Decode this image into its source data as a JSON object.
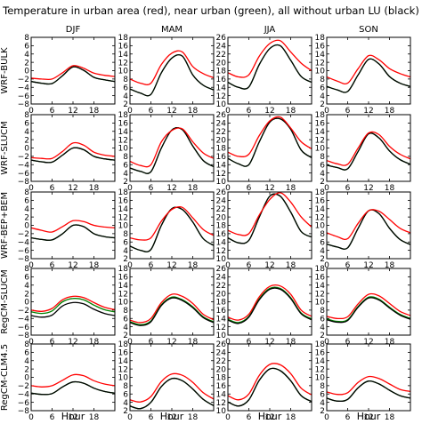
{
  "figure": {
    "title": "Temperature in urban area (red), near urban (green), all without urban LU (black)",
    "column_titles": [
      "DJF",
      "MAM",
      "JJA",
      "SON"
    ],
    "row_labels": [
      "WRF-BULK",
      "WRF-SLUCM",
      "WRF-BEP+BEM",
      "RegCM-SLUCM",
      "RegCM-CLM4.5"
    ],
    "xlabel": "Hour",
    "x_tick_labels": [
      "0",
      "6",
      "12",
      "18"
    ],
    "y_axes": [
      {
        "ticks": [
          "8",
          "6",
          "4",
          "2",
          "0",
          "−2",
          "−4",
          "−6",
          "−8"
        ]
      },
      {
        "ticks": [
          "18",
          "16",
          "14",
          "12",
          "10",
          "8",
          "6",
          "4",
          "2"
        ]
      },
      {
        "ticks": [
          "26",
          "24",
          "22",
          "20",
          "18",
          "16",
          "14",
          "12",
          "10"
        ]
      },
      {
        "ticks": [
          "18",
          "16",
          "14",
          "12",
          "10",
          "8",
          "6",
          "4",
          "2"
        ]
      }
    ],
    "series_colors": {
      "urban": "#ff0000",
      "near_urban": "#008000",
      "no_urban": "#000000"
    }
  },
  "chart_data": {
    "type": "line",
    "x_unit": "Hour",
    "x": [
      0,
      3,
      6,
      9,
      12,
      15,
      18,
      21,
      24
    ],
    "xlim": [
      0,
      24
    ],
    "ylims_by_column": [
      [
        -8,
        8
      ],
      [
        2,
        18
      ],
      [
        10,
        26
      ],
      [
        2,
        18
      ]
    ],
    "series_keys": [
      "urban",
      "near_urban",
      "no_urban"
    ],
    "panels": [
      {
        "row": "WRF-BULK",
        "col": "DJF",
        "series": [
          {
            "key": "urban",
            "values": [
              -1.8,
              -2.0,
              -2.0,
              -0.5,
              1.2,
              0.6,
              -0.6,
              -1.1,
              -1.4
            ]
          },
          {
            "key": "near_urban",
            "values": [
              -2.6,
              -3.0,
              -3.1,
              -1.2,
              0.9,
              0.1,
              -1.6,
              -2.2,
              -2.6
            ]
          },
          {
            "key": "no_urban",
            "values": [
              -2.6,
              -3.0,
              -3.1,
              -1.2,
              0.9,
              0.1,
              -1.6,
              -2.2,
              -2.6
            ]
          }
        ]
      },
      {
        "row": "WRF-BULK",
        "col": "MAM",
        "series": [
          {
            "key": "urban",
            "values": [
              8.0,
              7.0,
              7.0,
              11.5,
              14.2,
              14.5,
              11.0,
              9.3,
              8.3
            ]
          },
          {
            "key": "near_urban",
            "values": [
              5.6,
              4.6,
              4.3,
              9.5,
              13.0,
              13.5,
              9.0,
              6.5,
              5.4
            ]
          },
          {
            "key": "no_urban",
            "values": [
              5.6,
              4.6,
              4.3,
              9.5,
              13.0,
              13.5,
              9.0,
              6.5,
              5.4
            ]
          }
        ]
      },
      {
        "row": "WRF-BULK",
        "col": "JJA",
        "series": [
          {
            "key": "urban",
            "values": [
              17.5,
              16.5,
              17.0,
              21.5,
              24.5,
              25.2,
              22.5,
              19.8,
              18.0
            ]
          },
          {
            "key": "near_urban",
            "values": [
              15.2,
              14.0,
              14.1,
              19.5,
              23.3,
              24.0,
              20.5,
              16.6,
              15.2
            ]
          },
          {
            "key": "no_urban",
            "values": [
              15.2,
              14.0,
              14.1,
              19.5,
              23.3,
              24.0,
              20.5,
              16.6,
              15.2
            ]
          }
        ]
      },
      {
        "row": "WRF-BULK",
        "col": "SON",
        "series": [
          {
            "key": "urban",
            "values": [
              8.5,
              7.5,
              7.0,
              10.5,
              13.6,
              12.6,
              10.5,
              9.3,
              8.5
            ]
          },
          {
            "key": "near_urban",
            "values": [
              6.2,
              5.4,
              5.0,
              9.0,
              12.7,
              11.6,
              8.6,
              7.0,
              6.2
            ]
          },
          {
            "key": "no_urban",
            "values": [
              6.2,
              5.4,
              5.0,
              9.0,
              12.7,
              11.6,
              8.6,
              7.0,
              6.2
            ]
          }
        ]
      },
      {
        "row": "WRF-SLUCM",
        "col": "DJF",
        "series": [
          {
            "key": "urban",
            "values": [
              -2.3,
              -2.5,
              -2.5,
              -0.8,
              1.2,
              0.7,
              -1.0,
              -1.7,
              -2.0
            ]
          },
          {
            "key": "near_urban",
            "values": [
              -2.9,
              -3.3,
              -3.4,
              -1.7,
              0.0,
              -0.4,
              -2.0,
              -2.6,
              -2.9
            ]
          },
          {
            "key": "no_urban",
            "values": [
              -2.9,
              -3.3,
              -3.4,
              -1.7,
              0.0,
              -0.4,
              -2.0,
              -2.6,
              -2.9
            ]
          }
        ]
      },
      {
        "row": "WRF-SLUCM",
        "col": "MAM",
        "series": [
          {
            "key": "urban",
            "values": [
              6.8,
              5.8,
              6.0,
              11.5,
              14.2,
              14.6,
              11.5,
              8.8,
              7.5
            ]
          },
          {
            "key": "near_urban",
            "values": [
              5.2,
              4.4,
              4.3,
              10.0,
              14.3,
              14.4,
              10.5,
              7.0,
              5.5
            ]
          },
          {
            "key": "no_urban",
            "values": [
              5.2,
              4.4,
              4.3,
              10.0,
              14.3,
              14.4,
              10.5,
              7.0,
              5.5
            ]
          }
        ]
      },
      {
        "row": "WRF-SLUCM",
        "col": "JJA",
        "series": [
          {
            "key": "urban",
            "values": [
              17.0,
              16.0,
              16.5,
              21.0,
              24.5,
              25.4,
              22.8,
              19.5,
              17.8
            ]
          },
          {
            "key": "near_urban",
            "values": [
              15.5,
              14.2,
              14.0,
              19.5,
              24.2,
              25.0,
              22.5,
              17.5,
              15.7
            ]
          },
          {
            "key": "no_urban",
            "values": [
              15.5,
              14.2,
              14.0,
              19.5,
              24.2,
              25.0,
              22.5,
              17.5,
              15.7
            ]
          }
        ]
      },
      {
        "row": "WRF-SLUCM",
        "col": "SON",
        "series": [
          {
            "key": "urban",
            "values": [
              7.0,
              6.2,
              6.1,
              10.0,
              13.6,
              13.2,
              10.4,
              8.5,
              7.4
            ]
          },
          {
            "key": "near_urban",
            "values": [
              5.9,
              5.3,
              5.0,
              9.2,
              13.4,
              12.4,
              9.3,
              7.2,
              6.1
            ]
          },
          {
            "key": "no_urban",
            "values": [
              5.9,
              5.3,
              5.0,
              9.2,
              13.4,
              12.4,
              9.3,
              7.2,
              6.1
            ]
          }
        ]
      },
      {
        "row": "WRF-BEP+BEM",
        "col": "DJF",
        "series": [
          {
            "key": "urban",
            "values": [
              -0.6,
              -1.2,
              -1.6,
              -0.3,
              1.1,
              0.9,
              0.0,
              -0.4,
              -0.6
            ]
          },
          {
            "key": "near_urban",
            "values": [
              -3.0,
              -3.4,
              -3.5,
              -2.0,
              0.0,
              -0.3,
              -2.0,
              -2.7,
              -3.0
            ]
          },
          {
            "key": "no_urban",
            "values": [
              -3.0,
              -3.4,
              -3.5,
              -2.0,
              0.0,
              -0.3,
              -2.0,
              -2.7,
              -3.0
            ]
          }
        ]
      },
      {
        "row": "WRF-BEP+BEM",
        "col": "MAM",
        "series": [
          {
            "key": "urban",
            "values": [
              7.0,
              6.5,
              7.0,
              11.0,
              13.8,
              14.3,
              11.8,
              9.0,
              7.6
            ]
          },
          {
            "key": "near_urban",
            "values": [
              5.0,
              4.0,
              4.2,
              10.0,
              14.0,
              13.8,
              10.8,
              6.8,
              5.2
            ]
          },
          {
            "key": "no_urban",
            "values": [
              5.0,
              4.0,
              4.2,
              10.0,
              14.0,
              13.8,
              10.8,
              6.8,
              5.2
            ]
          }
        ]
      },
      {
        "row": "WRF-BEP+BEM",
        "col": "JJA",
        "series": [
          {
            "key": "urban",
            "values": [
              16.8,
              15.8,
              16.0,
              20.5,
              24.2,
              25.8,
              23.6,
              20.0,
              17.6
            ]
          },
          {
            "key": "near_urban",
            "values": [
              15.0,
              13.8,
              14.4,
              20.0,
              25.0,
              25.0,
              21.2,
              16.5,
              15.2
            ]
          },
          {
            "key": "no_urban",
            "values": [
              15.0,
              13.8,
              14.4,
              20.0,
              25.0,
              25.0,
              21.2,
              16.5,
              15.2
            ]
          }
        ]
      },
      {
        "row": "WRF-BEP+BEM",
        "col": "SON",
        "series": [
          {
            "key": "urban",
            "values": [
              8.2,
              7.3,
              6.8,
              10.5,
              13.5,
              13.4,
              11.4,
              9.3,
              8.2
            ]
          },
          {
            "key": "near_urban",
            "values": [
              5.5,
              4.8,
              4.6,
              9.3,
              13.5,
              12.8,
              9.3,
              6.6,
              5.4
            ]
          },
          {
            "key": "no_urban",
            "values": [
              5.5,
              4.8,
              4.6,
              9.3,
              13.5,
              12.8,
              9.3,
              6.6,
              5.4
            ]
          }
        ]
      },
      {
        "row": "RegCM-SLUCM",
        "col": "DJF",
        "series": [
          {
            "key": "urban",
            "values": [
              -2.0,
              -2.3,
              -1.6,
              0.5,
              1.3,
              1.0,
              -0.2,
              -1.3,
              -1.9
            ]
          },
          {
            "key": "near_urban",
            "values": [
              -2.4,
              -2.8,
              -2.2,
              0.0,
              0.8,
              0.5,
              -0.8,
              -1.9,
              -2.4
            ]
          },
          {
            "key": "no_urban",
            "values": [
              -3.3,
              -3.7,
              -3.2,
              -1.0,
              -0.2,
              -0.5,
              -1.8,
              -2.8,
              -3.3
            ]
          }
        ]
      },
      {
        "row": "RegCM-SLUCM",
        "col": "MAM",
        "series": [
          {
            "key": "urban",
            "values": [
              5.6,
              5.0,
              6.0,
              9.8,
              11.8,
              11.3,
              9.6,
              7.0,
              5.7
            ]
          },
          {
            "key": "near_urban",
            "values": [
              5.2,
              4.5,
              5.4,
              9.3,
              11.1,
              10.5,
              8.8,
              6.4,
              5.2
            ]
          },
          {
            "key": "no_urban",
            "values": [
              5.0,
              4.3,
              5.2,
              9.1,
              10.9,
              10.3,
              8.6,
              6.2,
              5.0
            ]
          }
        ]
      },
      {
        "row": "RegCM-SLUCM",
        "col": "JJA",
        "series": [
          {
            "key": "urban",
            "values": [
              14.3,
              13.6,
              15.0,
              19.2,
              21.7,
              21.8,
              19.8,
              16.0,
              14.5
            ]
          },
          {
            "key": "near_urban",
            "values": [
              13.8,
              13.0,
              14.5,
              18.7,
              21.2,
              21.2,
              19.0,
              15.3,
              13.9
            ]
          },
          {
            "key": "no_urban",
            "values": [
              13.6,
              12.8,
              14.3,
              18.5,
              21.0,
              21.0,
              18.8,
              15.1,
              13.7
            ]
          }
        ]
      },
      {
        "row": "RegCM-SLUCM",
        "col": "SON",
        "series": [
          {
            "key": "urban",
            "values": [
              6.5,
              6.0,
              6.4,
              9.5,
              11.8,
              11.4,
              9.6,
              7.7,
              6.7
            ]
          },
          {
            "key": "near_urban",
            "values": [
              5.9,
              5.3,
              5.7,
              8.9,
              11.1,
              10.6,
              8.7,
              7.0,
              6.0
            ]
          },
          {
            "key": "no_urban",
            "values": [
              5.7,
              5.1,
              5.5,
              8.7,
              10.9,
              10.4,
              8.5,
              6.8,
              5.8
            ]
          }
        ]
      },
      {
        "row": "RegCM-CLM4.5",
        "col": "DJF",
        "series": [
          {
            "key": "urban",
            "values": [
              -2.0,
              -2.3,
              -2.0,
              -0.7,
              0.6,
              0.4,
              -0.8,
              -1.6,
              -2.0
            ]
          },
          {
            "key": "near_urban",
            "values": [
              -3.8,
              -4.1,
              -3.9,
              -2.3,
              -1.1,
              -1.4,
              -2.6,
              -3.4,
              -3.8
            ]
          },
          {
            "key": "no_urban",
            "values": [
              -3.8,
              -4.1,
              -3.9,
              -2.3,
              -1.1,
              -1.4,
              -2.6,
              -3.4,
              -3.8
            ]
          }
        ]
      },
      {
        "row": "RegCM-CLM4.5",
        "col": "MAM",
        "series": [
          {
            "key": "urban",
            "values": [
              4.6,
              4.1,
              5.4,
              9.0,
              10.8,
              10.5,
              8.8,
              6.3,
              4.8
            ]
          },
          {
            "key": "near_urban",
            "values": [
              3.1,
              2.5,
              4.0,
              7.8,
              9.7,
              9.2,
              7.2,
              4.7,
              3.2
            ]
          },
          {
            "key": "no_urban",
            "values": [
              3.1,
              2.5,
              4.0,
              7.8,
              9.7,
              9.2,
              7.2,
              4.7,
              3.2
            ]
          }
        ]
      },
      {
        "row": "RegCM-CLM4.5",
        "col": "JJA",
        "series": [
          {
            "key": "urban",
            "values": [
              13.6,
              12.6,
              14.0,
              18.5,
              21.1,
              21.0,
              18.9,
              15.4,
              13.8
            ]
          },
          {
            "key": "near_urban",
            "values": [
              12.1,
              11.1,
              12.6,
              17.3,
              20.0,
              19.6,
              17.2,
              13.6,
              12.2
            ]
          },
          {
            "key": "no_urban",
            "values": [
              12.1,
              11.1,
              12.6,
              17.3,
              20.0,
              19.6,
              17.2,
              13.6,
              12.2
            ]
          }
        ]
      },
      {
        "row": "RegCM-CLM4.5",
        "col": "SON",
        "series": [
          {
            "key": "urban",
            "values": [
              6.5,
              5.9,
              6.3,
              8.8,
              10.2,
              9.7,
              8.4,
              7.1,
              6.6
            ]
          },
          {
            "key": "near_urban",
            "values": [
              5.0,
              4.3,
              4.7,
              7.5,
              9.1,
              8.4,
              6.9,
              5.6,
              5.0
            ]
          },
          {
            "key": "no_urban",
            "values": [
              5.0,
              4.3,
              4.7,
              7.5,
              9.1,
              8.4,
              6.9,
              5.6,
              5.0
            ]
          }
        ]
      }
    ]
  }
}
